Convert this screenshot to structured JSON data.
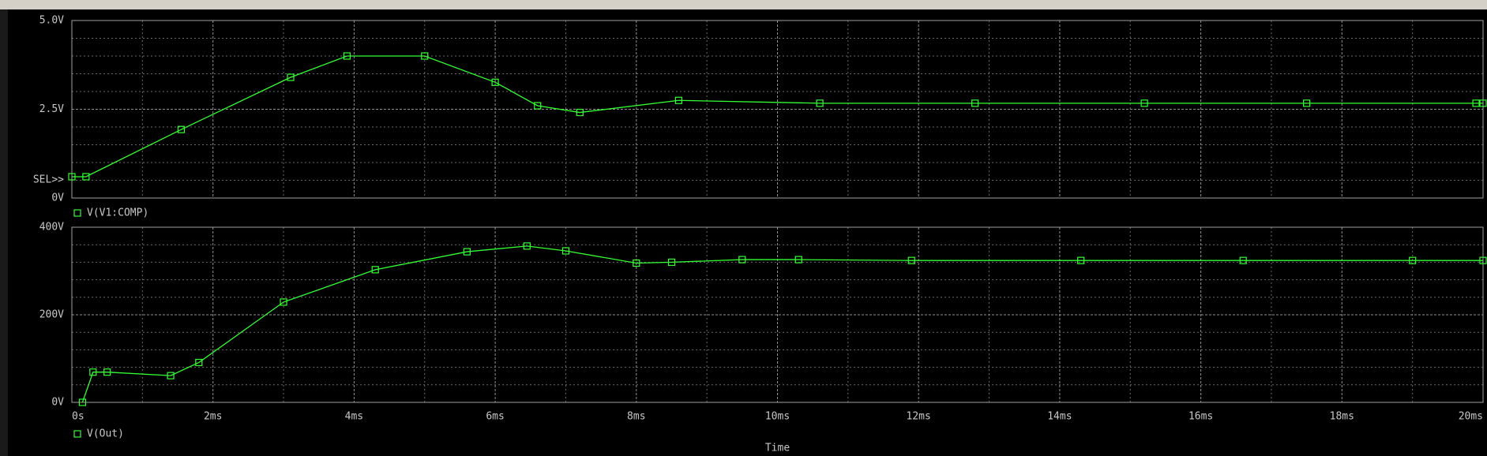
{
  "chart_data": [
    {
      "type": "line",
      "x": [
        0,
        0.2,
        1.55,
        3.1,
        3.9,
        5.0,
        6.0,
        6.6,
        7.2,
        8.6,
        10.6,
        12.8,
        15.2,
        17.5,
        19.9,
        20
      ],
      "series": [
        {
          "name": "V(V1:COMP)",
          "color": "#33ff33",
          "values": [
            0.6,
            0.6,
            1.93,
            3.4,
            4.0,
            4.0,
            3.26,
            2.6,
            2.41,
            2.75,
            2.67,
            2.67,
            2.67,
            2.67,
            2.67,
            2.67
          ]
        }
      ],
      "xlim": [
        0,
        20
      ],
      "ylim": [
        0,
        5
      ],
      "yticks": [
        {
          "value": 0,
          "label": "0V"
        },
        {
          "value": 2.5,
          "label": "2.5V"
        },
        {
          "value": 5,
          "label": "5.0V"
        }
      ],
      "annotation": "SEL>>",
      "grid": true
    },
    {
      "type": "line",
      "x": [
        0.15,
        0.3,
        0.5,
        1.4,
        1.8,
        3.0,
        4.3,
        5.6,
        6.45,
        7.0,
        8.0,
        8.5,
        9.5,
        10.3,
        11.9,
        14.3,
        16.6,
        19.0,
        20
      ],
      "series": [
        {
          "name": "V(Out)",
          "color": "#33ff33",
          "values": [
            0,
            69,
            69,
            61,
            91,
            229,
            303,
            344,
            357,
            346,
            318,
            320,
            326,
            326,
            324,
            324,
            324,
            324,
            324
          ]
        }
      ],
      "xlim": [
        0,
        20
      ],
      "xticks": [
        {
          "value": 0,
          "label": "0s"
        },
        {
          "value": 2,
          "label": "2ms"
        },
        {
          "value": 4,
          "label": "4ms"
        },
        {
          "value": 6,
          "label": "6ms"
        },
        {
          "value": 8,
          "label": "8ms"
        },
        {
          "value": 10,
          "label": "10ms"
        },
        {
          "value": 12,
          "label": "12ms"
        },
        {
          "value": 14,
          "label": "14ms"
        },
        {
          "value": 16,
          "label": "16ms"
        },
        {
          "value": 18,
          "label": "18ms"
        },
        {
          "value": 20,
          "label": "20ms"
        }
      ],
      "xlabel": "Time",
      "ylim": [
        0,
        400
      ],
      "yticks": [
        {
          "value": 0,
          "label": "0V"
        },
        {
          "value": 200,
          "label": "200V"
        },
        {
          "value": 400,
          "label": "400V"
        }
      ],
      "grid": true
    }
  ]
}
